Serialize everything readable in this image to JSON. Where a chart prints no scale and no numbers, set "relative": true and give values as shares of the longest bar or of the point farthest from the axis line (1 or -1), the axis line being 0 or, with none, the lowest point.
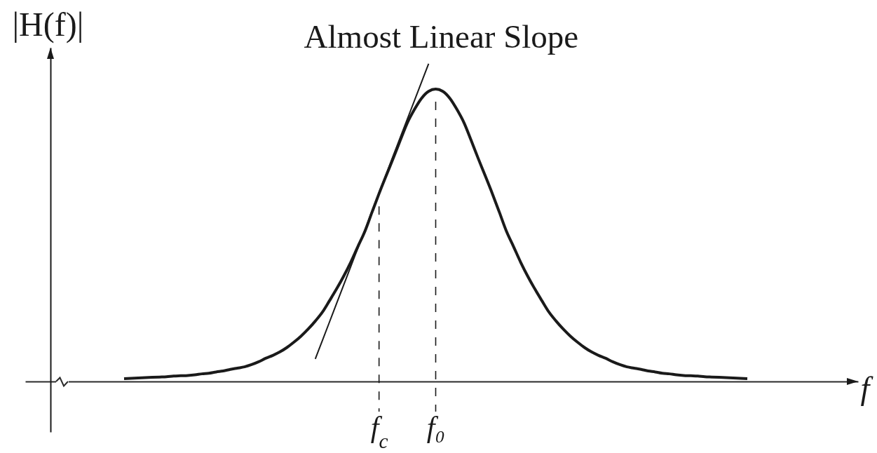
{
  "chart_data": {
    "type": "line",
    "xlabel": "f",
    "ylabel": "|H(f)|",
    "relative": true,
    "tick_labels": "x",
    "categories": [
      null,
      null,
      null,
      null,
      null,
      null,
      null,
      null,
      null,
      null,
      null,
      null,
      null,
      null,
      null,
      null,
      null,
      null,
      null,
      null,
      null,
      null,
      null,
      null,
      null,
      null,
      null,
      null,
      null,
      null,
      null,
      null,
      null,
      null,
      null,
      null,
      "f$_{c}$",
      null,
      null,
      null,
      null,
      null,
      null,
      null,
      "f₀",
      null,
      null,
      null,
      null,
      null,
      null,
      null,
      null,
      null,
      null,
      null,
      null,
      null,
      null,
      null,
      null,
      null,
      null,
      null,
      null,
      null,
      null,
      null,
      null,
      null,
      null,
      null,
      null,
      null,
      null,
      null,
      null,
      null,
      null,
      null,
      null,
      null,
      null,
      null,
      null,
      null,
      null,
      null,
      null
    ],
    "series": [
      {
        "color": "#1a1a1a",
        "values": [
          0.009,
          0.01,
          0.011,
          0.012,
          0.013,
          0.014,
          0.015,
          0.017,
          0.018,
          0.019,
          0.021,
          0.024,
          0.026,
          0.03,
          0.033,
          0.038,
          0.042,
          0.046,
          0.053,
          0.062,
          0.073,
          0.082,
          0.093,
          0.107,
          0.124,
          0.143,
          0.165,
          0.19,
          0.218,
          0.254,
          0.291,
          0.331,
          0.375,
          0.424,
          0.472,
          0.532,
          0.591,
          0.647,
          0.702,
          0.759,
          0.814,
          0.856,
          0.891,
          0.913,
          0.92,
          0.913,
          0.891,
          0.856,
          0.814,
          0.759,
          0.702,
          0.647,
          0.591,
          0.532,
          0.472,
          0.424,
          0.375,
          0.331,
          0.291,
          0.254,
          0.218,
          0.19,
          0.165,
          0.143,
          0.124,
          0.107,
          0.093,
          0.082,
          0.073,
          0.062,
          0.053,
          0.046,
          0.042,
          0.038,
          0.033,
          0.03,
          0.026,
          0.024,
          0.021,
          0.019,
          0.018,
          0.017,
          0.015,
          0.014,
          0.013,
          0.012,
          0.011,
          0.01,
          0.009
        ]
      },
      {
        "name": "Almost Linear Slope",
        "color": "#1a1a1a",
        "values": [
          null,
          null,
          null,
          null,
          null,
          null,
          null,
          null,
          null,
          null,
          null,
          null,
          null,
          null,
          null,
          null,
          null,
          null,
          null,
          null,
          null,
          null,
          null,
          null,
          null,
          null,
          null,
          0.071,
          0.129,
          0.187,
          0.245,
          0.303,
          0.361,
          0.419,
          0.477,
          0.536,
          0.594,
          0.652,
          0.71,
          0.768,
          0.826,
          0.884,
          0.942,
          1,
          null,
          null,
          null,
          null,
          null,
          null,
          null,
          null,
          null,
          null,
          null,
          null,
          null,
          null,
          null,
          null,
          null,
          null,
          null,
          null,
          null,
          null,
          null,
          null,
          null,
          null,
          null,
          null,
          null,
          null,
          null,
          null,
          null,
          null,
          null,
          null,
          null,
          null,
          null,
          null,
          null,
          null,
          null,
          null,
          null
        ]
      }
    ],
    "ref_lines": [
      {
        "axis": "x",
        "value": "f$_{c}$",
        "line_style": "dashed"
      },
      {
        "axis": "x",
        "value": "f₀",
        "line_style": "dashed"
      }
    ]
  }
}
